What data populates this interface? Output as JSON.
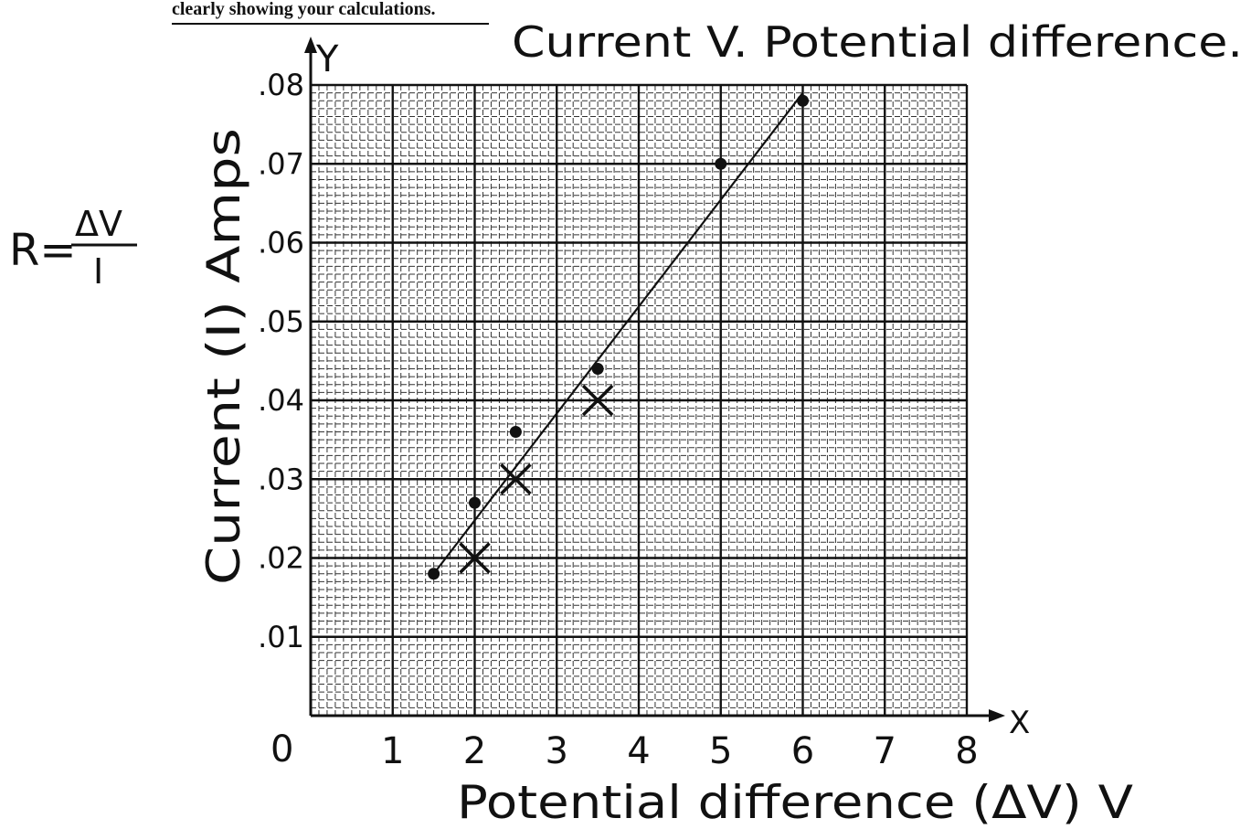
{
  "worksheet": {
    "instruction_fragment": "clearly showing your calculations.",
    "formula_lhs": "R=",
    "formula_numerator": "ΔV",
    "formula_denominator": "I"
  },
  "chart_data": {
    "type": "scatter",
    "title": "Current V. Potential difference.",
    "xlabel": "Potential difference (ΔV) V",
    "ylabel": "Current (I) Amps",
    "x_axis_letter": "X",
    "y_axis_letter": "Y",
    "origin_label": "0",
    "xlim": [
      0,
      8
    ],
    "ylim": [
      0,
      0.08
    ],
    "x_ticks": [
      1,
      2,
      3,
      4,
      5,
      6,
      7,
      8
    ],
    "x_tick_labels": [
      "1",
      "2",
      "3",
      "4",
      "5",
      "6",
      "7",
      "8"
    ],
    "y_ticks": [
      0.01,
      0.02,
      0.03,
      0.04,
      0.05,
      0.06,
      0.07,
      0.08
    ],
    "y_tick_labels": [
      ".01",
      ".02",
      ".03",
      ".04",
      ".05",
      ".06",
      ".07",
      ".08"
    ],
    "grid": true,
    "series": [
      {
        "marker": "dot",
        "x": [
          1.5,
          2,
          2.5,
          3.5,
          5,
          6
        ],
        "y": [
          0.018,
          0.027,
          0.036,
          0.044,
          0.07,
          0.078
        ]
      },
      {
        "marker": "cross",
        "x": [
          2,
          2.5,
          3.5
        ],
        "y": [
          0.02,
          0.03,
          0.04
        ]
      }
    ],
    "best_fit_line": {
      "x": [
        1.5,
        6
      ],
      "y": [
        0.018,
        0.079
      ]
    }
  }
}
